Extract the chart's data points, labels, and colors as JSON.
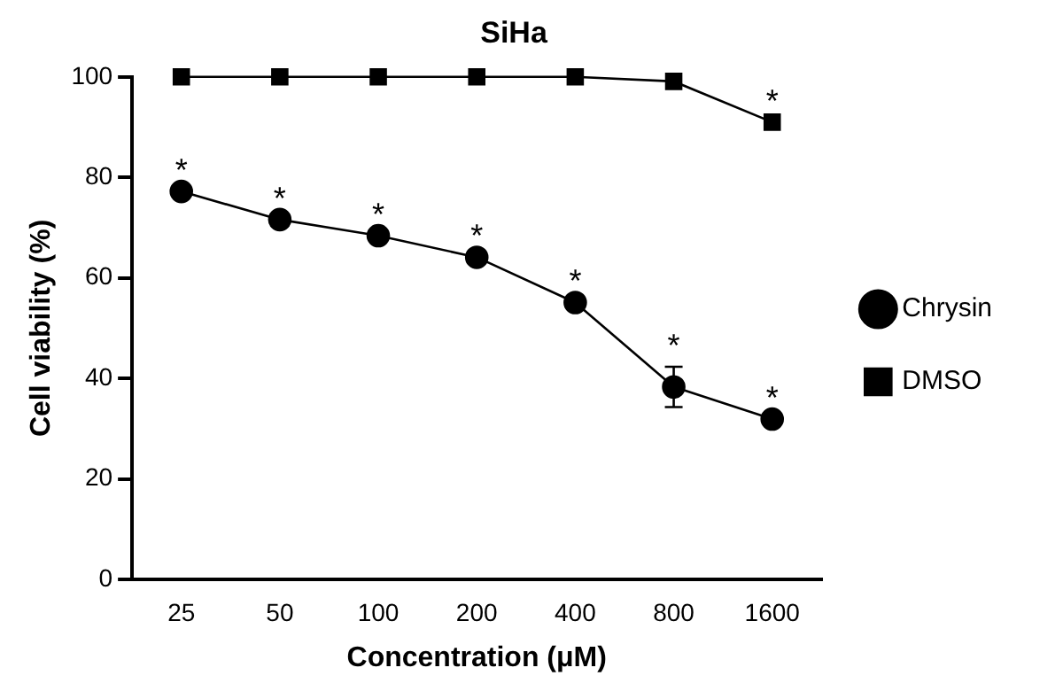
{
  "chart_data": {
    "type": "line",
    "title": "SiHa",
    "xlabel": "Concentration (μM)",
    "ylabel": "Cell viability (%)",
    "categories": [
      "25",
      "50",
      "100",
      "200",
      "400",
      "800",
      "1600"
    ],
    "series": [
      {
        "name": "Chrysin",
        "color": "#000000",
        "marker": "circle",
        "values": [
          77.2,
          71.6,
          68.4,
          64.1,
          55.1,
          38.3,
          31.9
        ],
        "errors": [
          null,
          null,
          null,
          null,
          null,
          4,
          null
        ]
      },
      {
        "name": "DMSO",
        "color": "#000000",
        "marker": "square",
        "values": [
          100,
          100,
          100,
          100,
          100,
          99.1,
          91.0
        ]
      }
    ],
    "ylim": [
      0,
      100
    ],
    "yticks": [
      0,
      20,
      40,
      60,
      80,
      100
    ],
    "grid": false,
    "legend": "right",
    "annotations": [
      {
        "text": "*",
        "x": "25",
        "y": 77.2
      },
      {
        "text": "*",
        "x": "50",
        "y": 71.6
      },
      {
        "text": "*",
        "x": "100",
        "y": 68.4
      },
      {
        "text": "*",
        "x": "200",
        "y": 64.1
      },
      {
        "text": "*",
        "x": "400",
        "y": 55.1
      },
      {
        "text": "*",
        "x": "800",
        "y": 42.3
      },
      {
        "text": "*",
        "x": "1600",
        "y": 31.9
      },
      {
        "text": "*",
        "x": "1600",
        "y": 91.0
      }
    ]
  }
}
